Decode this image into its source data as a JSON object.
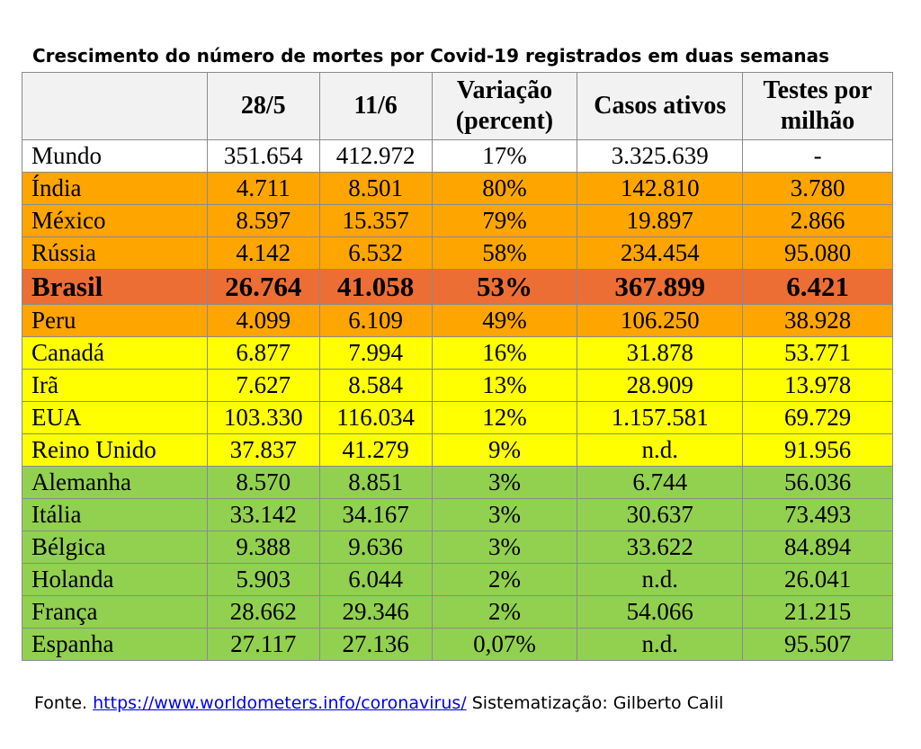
{
  "title": "Crescimento do número de mortes por Covid-19 registrados em duas semanas",
  "table": {
    "headers": [
      "",
      "28/5",
      "11/6",
      "Variação (percent)",
      "Casos ativos",
      "Testes por milhão"
    ],
    "rows": [
      {
        "band": "white",
        "cells": [
          "Mundo",
          "351.654",
          "412.972",
          "17%",
          "3.325.639",
          "-"
        ]
      },
      {
        "band": "orange",
        "cells": [
          "Índia",
          "4.711",
          "8.501",
          "80%",
          "142.810",
          "3.780"
        ]
      },
      {
        "band": "orange",
        "cells": [
          "México",
          "8.597",
          "15.357",
          "79%",
          "19.897",
          "2.866"
        ]
      },
      {
        "band": "orange",
        "cells": [
          "Rússia",
          "4.142",
          "6.532",
          "58%",
          "234.454",
          "95.080"
        ]
      },
      {
        "band": "red",
        "cells": [
          "Brasil",
          "26.764",
          "41.058",
          "53%",
          "367.899",
          "6.421"
        ]
      },
      {
        "band": "orange",
        "cells": [
          "Peru",
          "4.099",
          "6.109",
          "49%",
          "106.250",
          "38.928"
        ]
      },
      {
        "band": "yellow",
        "cells": [
          "Canadá",
          "6.877",
          "7.994",
          "16%",
          "31.878",
          "53.771"
        ]
      },
      {
        "band": "yellow",
        "cells": [
          "Irã",
          "7.627",
          "8.584",
          "13%",
          "28.909",
          "13.978"
        ]
      },
      {
        "band": "yellow",
        "cells": [
          "EUA",
          "103.330",
          "116.034",
          "12%",
          "1.157.581",
          "69.729"
        ]
      },
      {
        "band": "yellow",
        "cells": [
          "Reino Unido",
          "37.837",
          "41.279",
          "9%",
          "n.d.",
          "91.956"
        ]
      },
      {
        "band": "green",
        "cells": [
          "Alemanha",
          "8.570",
          "8.851",
          "3%",
          "6.744",
          "56.036"
        ]
      },
      {
        "band": "green",
        "cells": [
          "Itália",
          "33.142",
          "34.167",
          "3%",
          "30.637",
          "73.493"
        ]
      },
      {
        "band": "green",
        "cells": [
          "Bélgica",
          "9.388",
          "9.636",
          "3%",
          "33.622",
          "84.894"
        ]
      },
      {
        "band": "green",
        "cells": [
          "Holanda",
          "5.903",
          "6.044",
          "2%",
          "n.d.",
          "26.041"
        ]
      },
      {
        "band": "green",
        "cells": [
          "França",
          "28.662",
          "29.346",
          "2%",
          "54.066",
          "21.215"
        ]
      },
      {
        "band": "green",
        "cells": [
          "Espanha",
          "27.117",
          "27.136",
          "0,07%",
          "n.d.",
          "95.507"
        ]
      }
    ]
  },
  "band_colors": {
    "white": "#ffffff",
    "orange": "#ffa500",
    "red": "#ed6e34",
    "yellow": "#ffff00",
    "green": "#92d050"
  },
  "source": {
    "prefix": "Fonte. ",
    "link_text": "https://www.worldometers.info/coronavirus/",
    "suffix": " Sistematização: Gilberto Calil"
  }
}
